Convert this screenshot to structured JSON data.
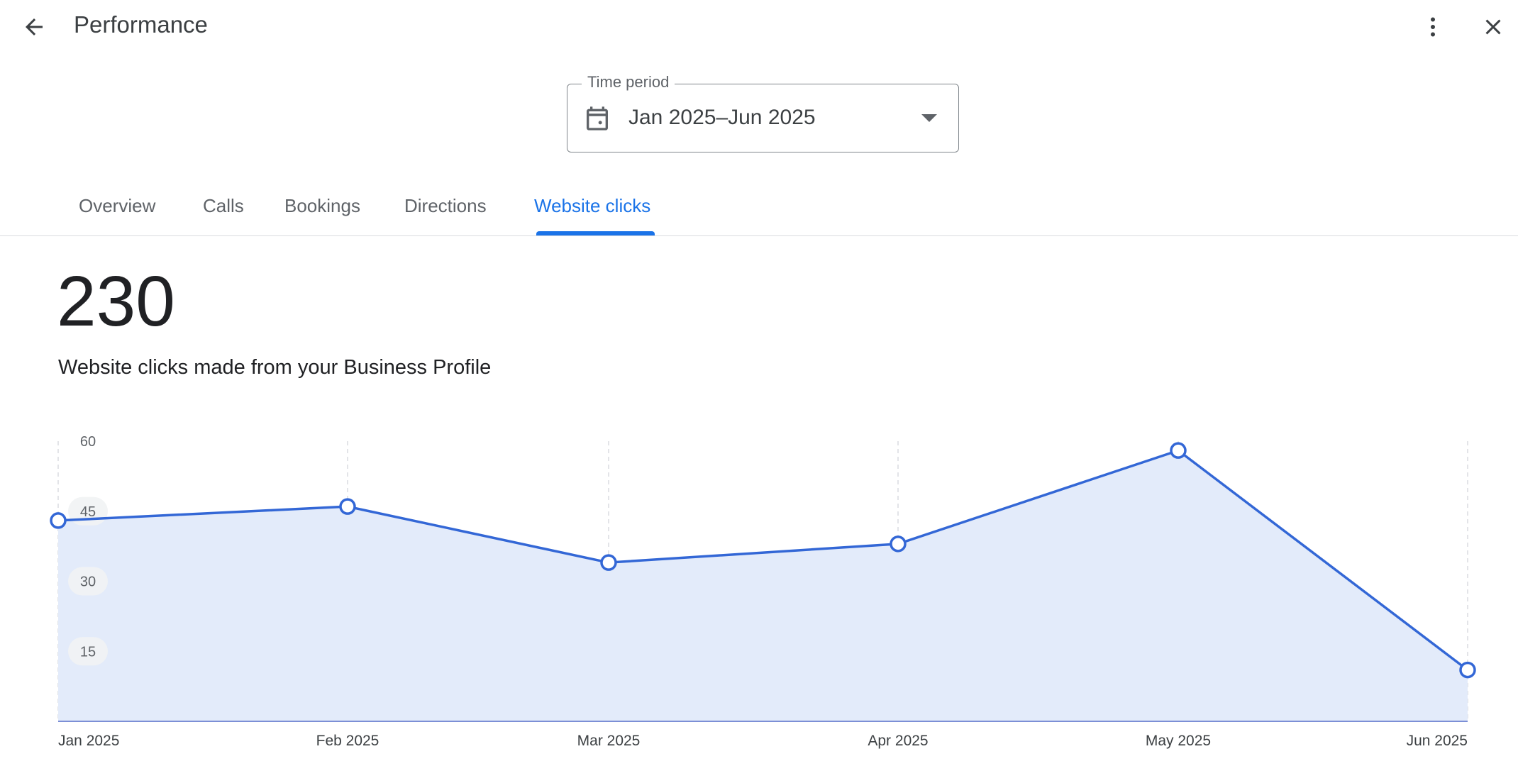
{
  "header": {
    "title": "Performance",
    "back_icon": "arrow-back-icon",
    "more_icon": "more-vert-icon",
    "close_icon": "close-icon"
  },
  "time_period": {
    "label": "Time period",
    "value": "Jan 2025–Jun 2025",
    "icon": "calendar-icon"
  },
  "tabs": [
    {
      "label": "Overview",
      "active": false
    },
    {
      "label": "Calls",
      "active": false
    },
    {
      "label": "Bookings",
      "active": false
    },
    {
      "label": "Directions",
      "active": false
    },
    {
      "label": "Website clicks",
      "active": true
    }
  ],
  "metric": {
    "value": "230",
    "description": "Website clicks made from your Business Profile"
  },
  "colors": {
    "accent": "#1a73e8",
    "line": "#3367d6",
    "area": "#e3ebfa"
  },
  "chart_data": {
    "type": "area",
    "x": [
      "Jan 2025",
      "Feb 2025",
      "Mar 2025",
      "Apr 2025",
      "May 2025",
      "Jun 2025"
    ],
    "values": [
      43,
      46,
      34,
      38,
      58,
      11
    ],
    "yticks": [
      15,
      30,
      45,
      60
    ],
    "ylim": [
      0,
      60
    ],
    "grid": true,
    "legend": "none"
  }
}
